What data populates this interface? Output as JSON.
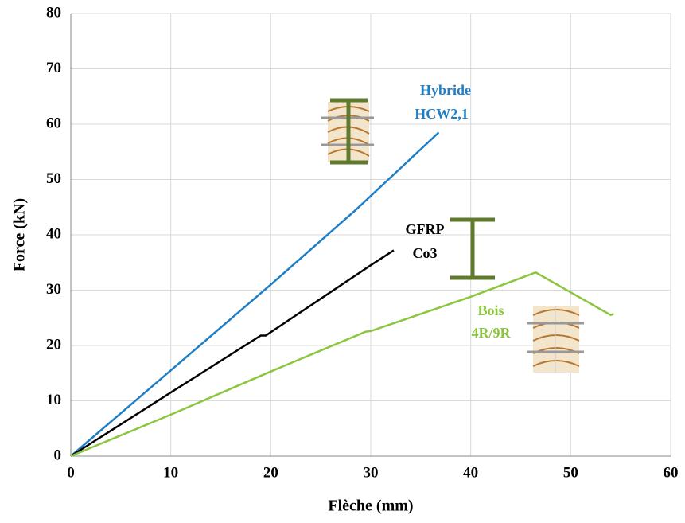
{
  "chart_data": {
    "type": "line",
    "x_label": "Flèche (mm)",
    "y_label": "Force (kN)",
    "xlim": [
      0,
      60
    ],
    "xticks": [
      0,
      10,
      20,
      30,
      40,
      50,
      60
    ],
    "ylim": [
      0,
      80
    ],
    "yticks": [
      0,
      10,
      20,
      30,
      40,
      50,
      60,
      70,
      80
    ],
    "grid": true,
    "series": [
      {
        "name": "Hybride HCW2,1",
        "label": [
          "Hybride",
          "HCW2,1"
        ],
        "color": "#1f7fc6",
        "x": [
          0,
          10,
          20,
          28.5,
          36.8
        ],
        "values": [
          0,
          15.5,
          31,
          44.5,
          58.5
        ]
      },
      {
        "name": "GFRP Co3",
        "label": [
          "GFRP",
          "Co3"
        ],
        "color": "#000000",
        "x": [
          0,
          10,
          19,
          19.5,
          30,
          32.3
        ],
        "values": [
          0,
          11.5,
          21.8,
          21.8,
          34.5,
          37.2
        ]
      },
      {
        "name": "Bois 4R/9R",
        "label": [
          "Bois",
          "4R/9R"
        ],
        "color": "#8cc63f",
        "x": [
          0,
          10,
          20,
          29.5,
          30,
          40,
          46.5,
          54,
          54.3
        ],
        "values": [
          0,
          7.5,
          15.3,
          22.5,
          22.6,
          28.8,
          33.2,
          25.5,
          25.7
        ]
      }
    ]
  }
}
